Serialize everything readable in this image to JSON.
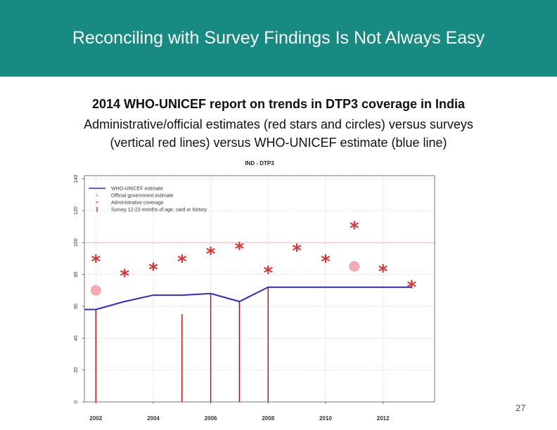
{
  "header": {
    "title": "Reconciling with Survey Findings Is Not Always Easy"
  },
  "subtitle": {
    "line1": "2014 WHO-UNICEF report on trends in DTP3 coverage in India",
    "line2": "Administrative/official estimates (red stars and circles) versus surveys",
    "line3": "(vertical red lines) versus WHO-UNICEF estimate (blue line)"
  },
  "page_number": "27",
  "chart_data": {
    "type": "line",
    "title": "IND  -  DTP3",
    "xlim": [
      2001.6,
      2013.8
    ],
    "ylim": [
      0,
      142
    ],
    "x_ticks": [
      2002,
      2004,
      2006,
      2008,
      2010,
      2012
    ],
    "y_ticks": [
      0,
      20,
      40,
      60,
      80,
      100,
      120,
      140
    ],
    "reference_line": 100,
    "legend": {
      "position": "top-left",
      "entries": [
        {
          "label": "WHO-UNICEF estimate",
          "marker": "line",
          "color": "#2b2bcc"
        },
        {
          "label": "Official government estimate",
          "marker": "circle",
          "color": "#f4a9b4"
        },
        {
          "label": "Administrative coverage",
          "marker": "star",
          "color": "#e03030"
        },
        {
          "label": "Survey 12-23 months of age, card or history",
          "marker": "vline",
          "color": "#cc0000"
        }
      ]
    },
    "series": [
      {
        "name": "WHO-UNICEF estimate",
        "x": [
          2001.6,
          2002,
          2003,
          2004,
          2005,
          2006,
          2007,
          2008,
          2009,
          2010,
          2011,
          2012,
          2013
        ],
        "values": [
          58,
          58,
          63,
          67,
          67,
          68,
          63,
          72,
          72,
          72,
          72,
          72,
          72
        ]
      },
      {
        "name": "Official government estimate",
        "x": [
          2002,
          2011
        ],
        "values": [
          70,
          85
        ]
      },
      {
        "name": "Administrative coverage",
        "x": [
          2002,
          2003,
          2004,
          2005,
          2006,
          2007,
          2008,
          2009,
          2010,
          2011,
          2012,
          2013
        ],
        "values": [
          89,
          80,
          84,
          89,
          94,
          97,
          82,
          96,
          89,
          110,
          83,
          73
        ]
      },
      {
        "name": "Survey 12-23 months of age, card or history",
        "x": [
          2002,
          2005,
          2006,
          2007,
          2008
        ],
        "values": [
          58,
          55,
          68,
          63,
          72
        ]
      }
    ]
  }
}
